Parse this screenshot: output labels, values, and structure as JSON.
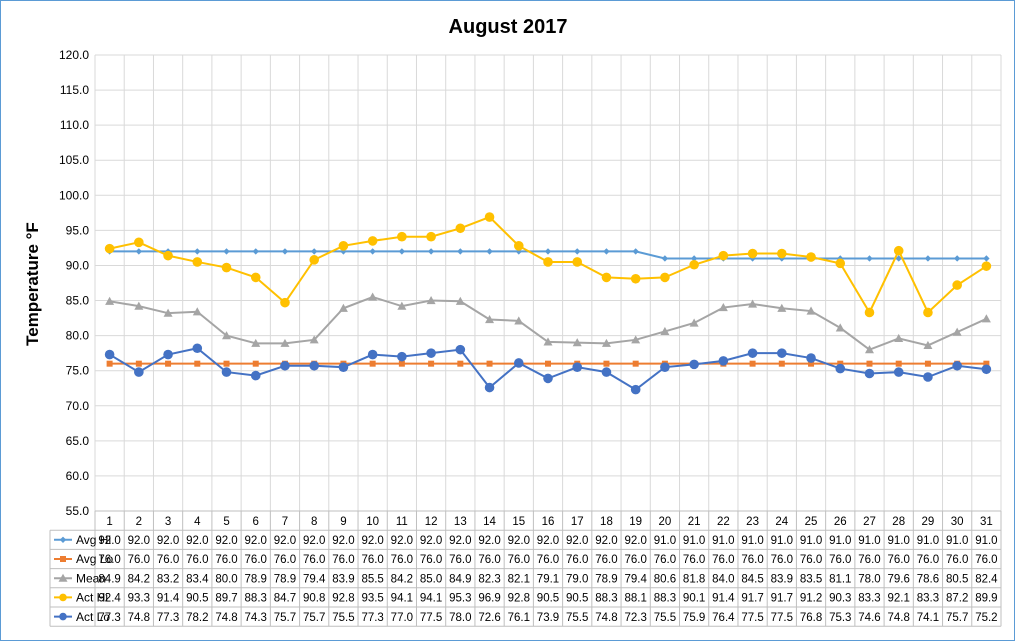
{
  "chart_data": {
    "type": "line",
    "title": "August 2017",
    "xlabel": "",
    "ylabel": "Temperature °F",
    "ylim": [
      55.0,
      120.0
    ],
    "ytick_step": 5,
    "grid": true,
    "legend": "data-table",
    "categories": [
      "1",
      "2",
      "3",
      "4",
      "5",
      "6",
      "7",
      "8",
      "9",
      "10",
      "11",
      "12",
      "13",
      "14",
      "15",
      "16",
      "17",
      "18",
      "19",
      "20",
      "21",
      "22",
      "23",
      "24",
      "25",
      "26",
      "27",
      "28",
      "29",
      "30",
      "31"
    ],
    "series": [
      {
        "name": "Avg Hi",
        "color": "#5b9bd5",
        "marker": "diamond",
        "values": [
          92.0,
          92.0,
          92.0,
          92.0,
          92.0,
          92.0,
          92.0,
          92.0,
          92.0,
          92.0,
          92.0,
          92.0,
          92.0,
          92.0,
          92.0,
          92.0,
          92.0,
          92.0,
          92.0,
          91.0,
          91.0,
          91.0,
          91.0,
          91.0,
          91.0,
          91.0,
          91.0,
          91.0,
          91.0,
          91.0,
          91.0
        ]
      },
      {
        "name": "Avg Lo",
        "color": "#ed7d31",
        "marker": "square",
        "values": [
          76.0,
          76.0,
          76.0,
          76.0,
          76.0,
          76.0,
          76.0,
          76.0,
          76.0,
          76.0,
          76.0,
          76.0,
          76.0,
          76.0,
          76.0,
          76.0,
          76.0,
          76.0,
          76.0,
          76.0,
          76.0,
          76.0,
          76.0,
          76.0,
          76.0,
          76.0,
          76.0,
          76.0,
          76.0,
          76.0,
          76.0
        ]
      },
      {
        "name": "Mean",
        "color": "#a5a5a5",
        "marker": "triangle",
        "values": [
          84.9,
          84.2,
          83.2,
          83.4,
          80.0,
          78.9,
          78.9,
          79.4,
          83.9,
          85.5,
          84.2,
          85.0,
          84.9,
          82.3,
          82.1,
          79.1,
          79.0,
          78.9,
          79.4,
          80.6,
          81.8,
          84.0,
          84.5,
          83.9,
          83.5,
          81.1,
          78.0,
          79.6,
          78.6,
          80.5,
          82.4
        ]
      },
      {
        "name": "Act Hi",
        "color": "#ffc000",
        "marker": "circle",
        "values": [
          92.4,
          93.3,
          91.4,
          90.5,
          89.7,
          88.3,
          84.7,
          90.8,
          92.8,
          93.5,
          94.1,
          94.1,
          95.3,
          96.9,
          92.8,
          90.5,
          90.5,
          88.3,
          88.1,
          88.3,
          90.1,
          91.4,
          91.7,
          91.7,
          91.2,
          90.3,
          83.3,
          92.1,
          83.3,
          87.2,
          89.9
        ]
      },
      {
        "name": "Act Lo",
        "color": "#4472c4",
        "marker": "circle",
        "values": [
          77.3,
          74.8,
          77.3,
          78.2,
          74.8,
          74.3,
          75.7,
          75.7,
          75.5,
          77.3,
          77.0,
          77.5,
          78.0,
          72.6,
          76.1,
          73.9,
          75.5,
          74.8,
          72.3,
          75.5,
          75.9,
          76.4,
          77.5,
          77.5,
          76.8,
          75.3,
          74.6,
          74.8,
          74.1,
          75.7,
          75.2
        ]
      }
    ]
  }
}
